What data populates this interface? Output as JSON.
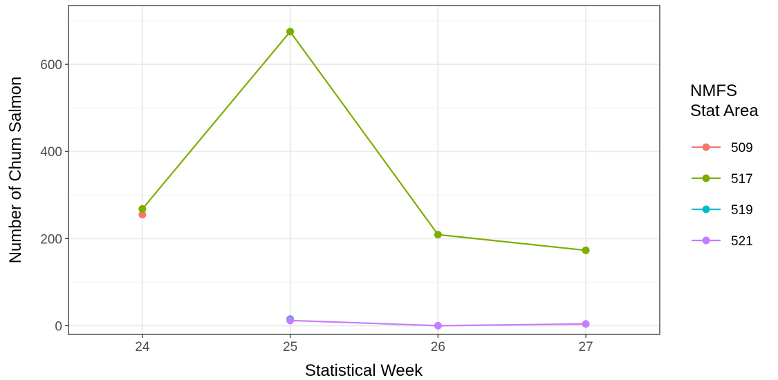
{
  "chart_data": {
    "type": "line",
    "xlabel": "Statistical Week",
    "ylabel": "Number of Chum Salmon",
    "x": [
      24,
      25,
      26,
      27
    ],
    "xlim": [
      23.5,
      27.5
    ],
    "ylim": [
      -20,
      735
    ],
    "x_ticks": [
      24,
      25,
      26,
      27
    ],
    "y_ticks": [
      0,
      200,
      400,
      600
    ],
    "grid": true,
    "legend_title_lines": [
      "NMFS",
      "Stat Area"
    ],
    "legend_placement": "right",
    "series": [
      {
        "name": "509",
        "color": "#F8766D",
        "points": [
          [
            24,
            255
          ]
        ]
      },
      {
        "name": "517",
        "color": "#7CAE00",
        "points": [
          [
            24,
            268
          ],
          [
            25,
            675
          ],
          [
            26,
            209
          ],
          [
            27,
            173
          ]
        ]
      },
      {
        "name": "519",
        "color": "#00BFC4",
        "points": [
          [
            25,
            15
          ]
        ]
      },
      {
        "name": "521",
        "color": "#C77CFF",
        "points": [
          [
            25,
            12
          ],
          [
            26,
            0
          ],
          [
            27,
            4
          ]
        ]
      }
    ]
  }
}
